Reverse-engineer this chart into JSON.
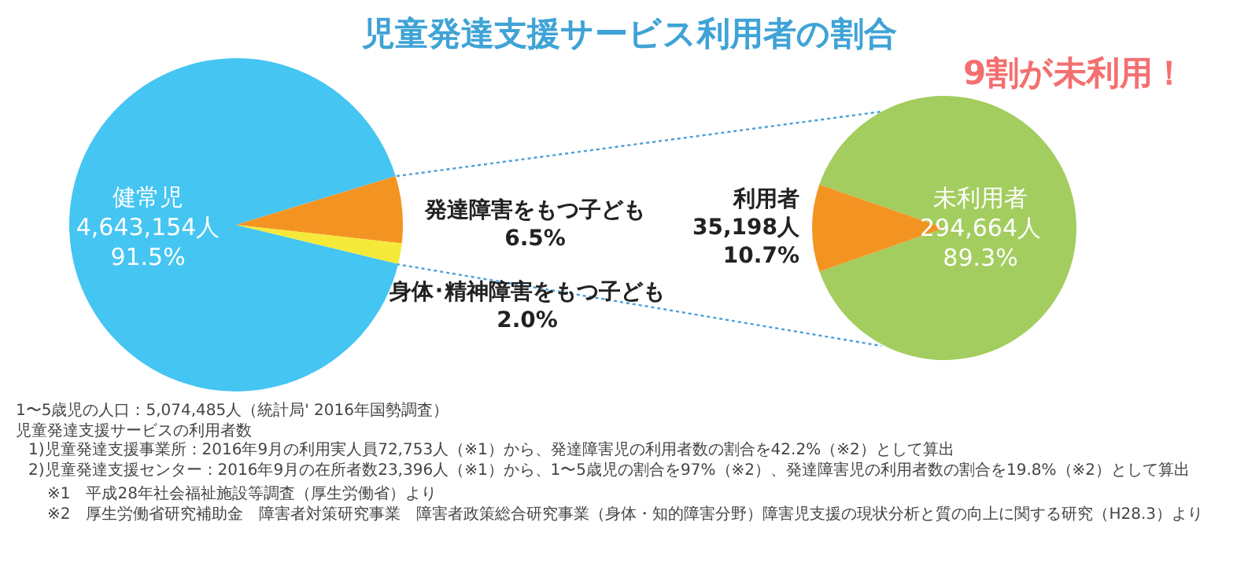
{
  "chart_data": [
    {
      "type": "pie",
      "title": "児童発達支援サービス利用者の割合",
      "categories": [
        "健常児",
        "発達障害をもつ子ども",
        "身体･精神障害をもつ子ども"
      ],
      "values": [
        91.5,
        6.5,
        2.0
      ],
      "colors": [
        "#45c5f2",
        "#f39422",
        "#f5e93a"
      ],
      "value_labels": [
        "4,643,154人\n91.5%",
        "6.5%",
        "2.0%"
      ],
      "annotations": [
        "1〜5歳児の人口：5,074,485人（統計局' 2016年国勢調査）",
        "児童発達支援サービスの利用者数",
        "1)児童発達支援事業所：2016年9月の利用実人員72,753人（※1）から、発達障害児の利用者数の割合を42.2%（※2）として算出",
        "2)児童発達支援センター：2016年9月の在所者数23,396人（※1）から、1〜5歳児の割合を97%（※2）、発達障害児の利用者数の割合を19.8%（※2）として算出",
        "※1　平成28年社会福祉施設等調査（厚生労働省）より",
        "※2　厚生労働省研究補助金　障害者対策研究事業　障害者政策総合研究事業（身体・知的障害分野）障害児支援の現状分析と質の向上に関する研究（H28.3）より"
      ]
    },
    {
      "type": "pie",
      "categories": [
        "未利用者",
        "利用者"
      ],
      "values": [
        89.3,
        10.7
      ],
      "colors": [
        "#a3cd5f",
        "#f39422"
      ],
      "value_labels": [
        "294,664人\n89.3%",
        "35,198人\n10.7%"
      ],
      "annotations": [
        "9割が未利用！"
      ]
    }
  ]
}
